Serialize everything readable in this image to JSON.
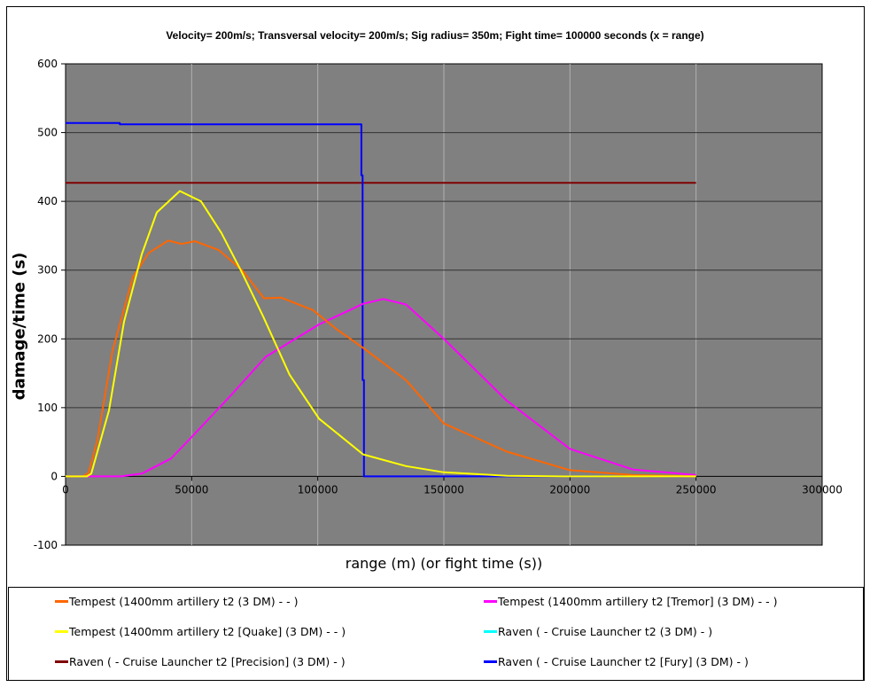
{
  "chart_data": {
    "type": "line",
    "title": "Velocity= 200m/s; Transversal velocity= 200m/s; Sig radius= 350m; Fight time= 100000 seconds (x = range)",
    "xlabel": "range (m) (or fight time (s))",
    "ylabel": "damage/time (s)",
    "xlim": [
      0,
      300000
    ],
    "ylim": [
      -100,
      600
    ],
    "xticks": [
      0,
      50000,
      100000,
      150000,
      200000,
      250000,
      300000
    ],
    "yticks": [
      -100,
      0,
      100,
      200,
      300,
      400,
      500,
      600
    ],
    "grid": true,
    "plot_background": "#808080",
    "legend_placement": "bottom",
    "series": [
      {
        "name": "Tempest (1400mm artillery t2 (3 DM)  -  - )",
        "color": "#ff6600",
        "x": [
          0,
          7000,
          9100,
          12650,
          18600,
          26700,
          33000,
          40700,
          46000,
          51300,
          60800,
          70000,
          78700,
          85400,
          98000,
          107500,
          118000,
          135000,
          150000,
          175000,
          200000,
          225000,
          250000
        ],
        "y": [
          0,
          0,
          5,
          53,
          182,
          290,
          325,
          343,
          338,
          342,
          329,
          300,
          259,
          260,
          242,
          214,
          187,
          140,
          77,
          36,
          9,
          2,
          0
        ]
      },
      {
        "name": "Tempest (1400mm artillery t2 [Tremor] (3 DM)  -  - )",
        "color": "#ff00ff",
        "x": [
          0,
          22000,
          30200,
          41800,
          50200,
          65300,
          79400,
          100500,
          118000,
          126000,
          135000,
          150000,
          175000,
          200000,
          225000,
          250000
        ],
        "y": [
          0,
          0,
          4,
          26,
          58,
          117,
          174,
          221,
          251,
          258,
          250,
          200,
          110,
          40,
          10,
          2
        ]
      },
      {
        "name": "Tempest (1400mm artillery t2 [Quake] (3 DM)  -  - )",
        "color": "#ffff00",
        "x": [
          0,
          8500,
          10200,
          17200,
          23200,
          30200,
          36200,
          45300,
          53700,
          61800,
          70000,
          78300,
          88800,
          100500,
          118000,
          135000,
          150000,
          175000,
          200000,
          250000
        ],
        "y": [
          0,
          0,
          4,
          96,
          225,
          323,
          384,
          415,
          400,
          354,
          296,
          233,
          148,
          84,
          32,
          15,
          6,
          1,
          0,
          0
        ]
      },
      {
        "name": "Raven ( - Cruise Launcher t2 (3 DM) - )",
        "color": "#00ffff",
        "x": [],
        "y": []
      },
      {
        "name": "Raven ( - Cruise Launcher t2 [Precision] (3 DM) - )",
        "color": "#800000",
        "x": [
          0,
          250000
        ],
        "y": [
          427,
          427
        ]
      },
      {
        "name": "Raven ( - Cruise Launcher t2 [Fury] (3 DM) - )",
        "color": "#0000ff",
        "x": [
          0,
          21500,
          21500,
          117300,
          117300,
          117800,
          117800,
          118300,
          118300,
          250000
        ],
        "y": [
          514,
          514,
          512,
          512,
          438,
          438,
          140,
          140,
          0,
          0
        ]
      }
    ]
  }
}
